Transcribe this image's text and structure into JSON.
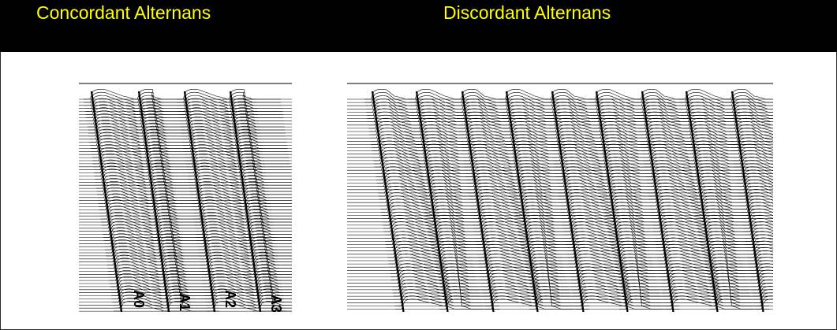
{
  "header": {
    "left_title": "Concordant Alternans",
    "right_title": "Discordant Alternans"
  },
  "left_panel": {
    "beat_labels": [
      "A0",
      "A1",
      "A2",
      "A3"
    ]
  },
  "colors": {
    "header_bg": "#000000",
    "title_text": "#ffff00",
    "trace": "#000000",
    "background": "#ffffff"
  }
}
